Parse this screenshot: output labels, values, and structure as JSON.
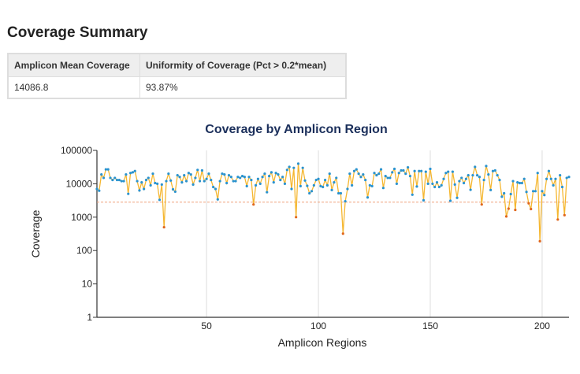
{
  "summary": {
    "title": "Coverage Summary",
    "headers": [
      "Amplicon Mean Coverage",
      "Uniformity of Coverage (Pct > 0.2*mean)"
    ],
    "values": [
      "14086.8",
      "93.87%"
    ]
  },
  "chart_data": {
    "type": "scatter",
    "title": "Coverage by Amplicon Region",
    "xlabel": "Amplicon Regions",
    "ylabel": "Coverage",
    "yscale": "log",
    "ylim": [
      1,
      100000
    ],
    "xlim": [
      1,
      212
    ],
    "yticks": [
      "1",
      "10",
      "100",
      "1000",
      "10000",
      "100000"
    ],
    "xticks": [
      "50",
      "100",
      "150",
      "200"
    ],
    "threshold": 2817.4,
    "grid": "vertical",
    "colors": {
      "above": "#2a93cf",
      "below": "#e0661c",
      "line": "#f5b731",
      "threshold": "#f0a07a",
      "title": "#1b2f5b"
    },
    "values": [
      7000,
      6200,
      19000,
      15000,
      27000,
      27000,
      15000,
      13000,
      15000,
      13000,
      13000,
      12000,
      12000,
      19000,
      5000,
      21000,
      22000,
      24000,
      12000,
      6300,
      11000,
      7000,
      13000,
      15000,
      9000,
      20000,
      10500,
      10000,
      3300,
      9500,
      500,
      12000,
      20000,
      12500,
      6800,
      5800,
      18000,
      16000,
      11000,
      18000,
      12000,
      21000,
      19000,
      9500,
      15000,
      26000,
      12000,
      25000,
      12000,
      14000,
      20000,
      13000,
      8000,
      7000,
      3400,
      12000,
      20000,
      19000,
      10500,
      18000,
      16000,
      12000,
      12000,
      16000,
      15000,
      17000,
      16000,
      8500,
      16000,
      13000,
      2400,
      9000,
      14000,
      10000,
      16000,
      20000,
      5600,
      17000,
      22000,
      11000,
      21000,
      19000,
      13000,
      16000,
      10000,
      26000,
      32000,
      7000,
      30000,
      1000,
      40000,
      8500,
      30000,
      12500,
      8700,
      5200,
      6000,
      9000,
      13000,
      14000,
      8500,
      8000,
      13000,
      9000,
      20000,
      6500,
      11000,
      15000,
      5200,
      5200,
      320,
      3000,
      7000,
      20000,
      9000,
      24000,
      27000,
      20000,
      16000,
      19000,
      13000,
      3900,
      9000,
      8500,
      21000,
      18000,
      20000,
      27000,
      7500,
      17000,
      15000,
      15000,
      22000,
      28000,
      10000,
      21000,
      25000,
      25000,
      20000,
      31000,
      17000,
      4700,
      24000,
      8300,
      24000,
      24000,
      3200,
      23000,
      10000,
      28000,
      10000,
      8000,
      11000,
      8000,
      9000,
      14000,
      21000,
      23000,
      3100,
      23000,
      9500,
      3800,
      12000,
      15000,
      10500,
      14000,
      18000,
      6600,
      18000,
      32000,
      18000,
      16000,
      2400,
      13000,
      34000,
      19000,
      6500,
      24000,
      25000,
      18000,
      13000,
      4100,
      5200,
      1050,
      1800,
      4900,
      12000,
      1650,
      11000,
      10500,
      10500,
      14000,
      5700,
      2600,
      1750,
      6000,
      6000,
      21000,
      190,
      6000,
      4600,
      14000,
      24000,
      14000,
      9000,
      14000,
      850,
      18000,
      8000,
      1150,
      15000,
      16000
    ]
  }
}
